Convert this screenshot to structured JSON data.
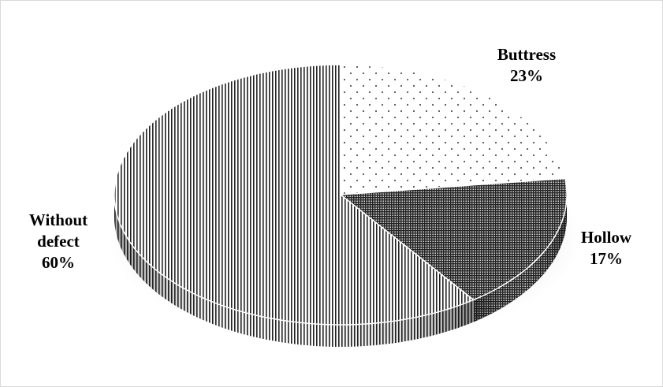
{
  "chart_data": {
    "type": "pie",
    "style": "3d",
    "slices": [
      {
        "label": "Buttress",
        "label_lines": [
          "Buttress"
        ],
        "value": 23,
        "percent_label": "23%",
        "pattern": "dots"
      },
      {
        "label": "Hollow",
        "label_lines": [
          "Hollow"
        ],
        "value": 17,
        "percent_label": "17%",
        "pattern": "dense-grid"
      },
      {
        "label": "Without defect",
        "label_lines": [
          "Without",
          "defect"
        ],
        "value": 60,
        "percent_label": "60%",
        "pattern": "vertical-lines"
      }
    ],
    "start": "12 o'clock",
    "direction": "clockwise",
    "legend": "none",
    "colors": {
      "ink": "#000000",
      "background": "#ffffff",
      "border": "#d9d9d9"
    }
  }
}
